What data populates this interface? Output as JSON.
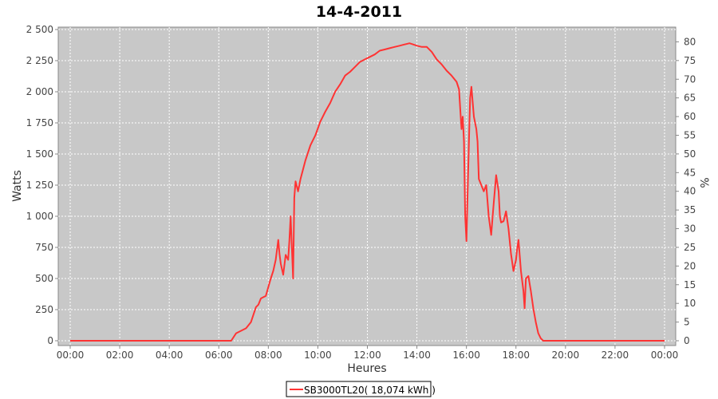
{
  "chart_data": {
    "type": "line",
    "title": "14-4-2011",
    "xlabel": "Heures",
    "ylabel": "Watts",
    "y2label": "%",
    "xlim": [
      0,
      24
    ],
    "ylim": [
      0,
      2500
    ],
    "y2lim": [
      0,
      83.3
    ],
    "grid": true,
    "legend_placement": "bottom-center",
    "plot_background": "#c8c8c8",
    "x_ticks": [
      "00:00",
      "02:00",
      "04:00",
      "06:00",
      "08:00",
      "10:00",
      "12:00",
      "14:00",
      "16:00",
      "18:00",
      "20:00",
      "22:00",
      "00:00"
    ],
    "y_ticks": [
      "0",
      "250",
      "500",
      "750",
      "1 000",
      "1 250",
      "1 500",
      "1 750",
      "2 000",
      "2 250",
      "2 500"
    ],
    "y2_ticks": [
      "0",
      "5",
      "10",
      "15",
      "20",
      "25",
      "30",
      "35",
      "40",
      "45",
      "50",
      "55",
      "60",
      "65",
      "70",
      "75",
      "80"
    ],
    "series": [
      {
        "name": "SB3000TL20( 18,074 kWh )",
        "color": "#ff3333",
        "x": [
          0,
          6.5,
          6.7,
          6.9,
          7.1,
          7.3,
          7.5,
          7.6,
          7.7,
          7.8,
          7.9,
          8.0,
          8.1,
          8.2,
          8.3,
          8.4,
          8.45,
          8.5,
          8.6,
          8.7,
          8.8,
          8.85,
          8.9,
          9.0,
          9.05,
          9.1,
          9.2,
          9.3,
          9.5,
          9.7,
          9.9,
          10.1,
          10.3,
          10.5,
          10.7,
          10.9,
          11.1,
          11.3,
          11.5,
          11.7,
          11.9,
          12.1,
          12.3,
          12.5,
          12.7,
          12.9,
          13.1,
          13.3,
          13.5,
          13.7,
          13.85,
          14.0,
          14.2,
          14.4,
          14.6,
          14.8,
          15.0,
          15.2,
          15.4,
          15.6,
          15.7,
          15.75,
          15.8,
          15.85,
          15.9,
          15.95,
          16.0,
          16.05,
          16.1,
          16.15,
          16.2,
          16.3,
          16.4,
          16.45,
          16.5,
          16.6,
          16.7,
          16.8,
          16.9,
          17.0,
          17.05,
          17.1,
          17.2,
          17.3,
          17.35,
          17.4,
          17.5,
          17.6,
          17.7,
          17.8,
          17.9,
          18.0,
          18.05,
          18.1,
          18.2,
          18.3,
          18.35,
          18.4,
          18.5,
          18.6,
          18.7,
          18.8,
          18.9,
          19.0,
          19.1,
          19.3,
          19.5,
          24
        ],
        "values": [
          0,
          0,
          60,
          80,
          100,
          150,
          270,
          290,
          340,
          350,
          360,
          430,
          500,
          560,
          650,
          810,
          700,
          620,
          530,
          690,
          650,
          800,
          1000,
          500,
          1150,
          1280,
          1200,
          1300,
          1450,
          1570,
          1650,
          1760,
          1840,
          1910,
          2000,
          2060,
          2130,
          2160,
          2200,
          2240,
          2260,
          2280,
          2300,
          2330,
          2340,
          2350,
          2360,
          2370,
          2380,
          2390,
          2380,
          2370,
          2360,
          2360,
          2320,
          2260,
          2220,
          2170,
          2130,
          2080,
          2020,
          1860,
          1700,
          1800,
          1600,
          1000,
          800,
          1200,
          1600,
          1950,
          2040,
          1800,
          1700,
          1600,
          1300,
          1250,
          1200,
          1250,
          1000,
          850,
          980,
          1100,
          1330,
          1200,
          1000,
          950,
          960,
          1040,
          900,
          700,
          560,
          650,
          740,
          810,
          560,
          400,
          260,
          500,
          520,
          400,
          260,
          150,
          60,
          20,
          0,
          0,
          0,
          0
        ]
      }
    ]
  }
}
